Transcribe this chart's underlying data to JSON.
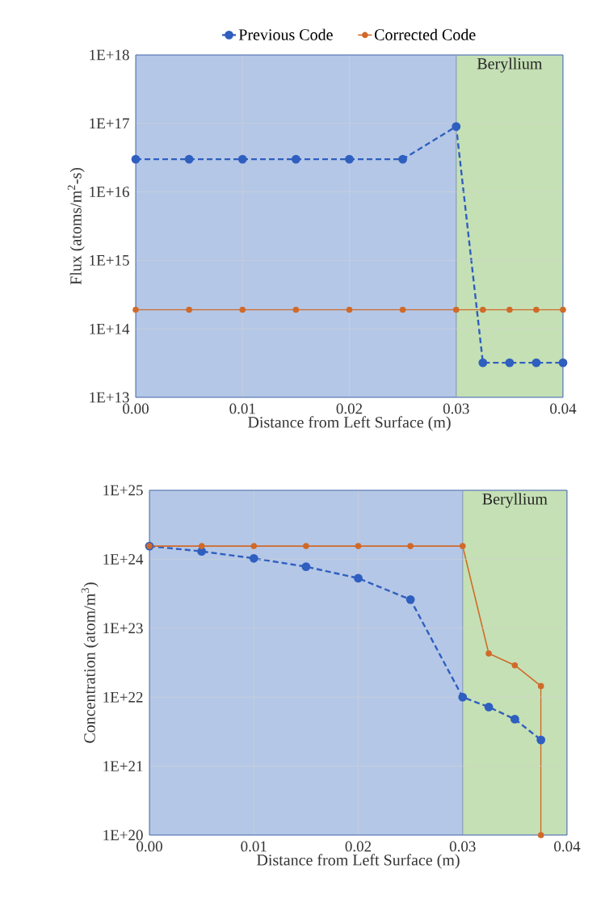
{
  "chart_data": [
    {
      "type": "line",
      "xlabel": "Distance from Left Surface (m)",
      "ylabel": "Flux (atoms/m$^{2}$-s)",
      "log": "y",
      "grid": true,
      "legend": "top",
      "marker": "circle",
      "x": [
        0,
        0.005,
        0.01,
        0.015,
        0.02,
        0.025,
        0.03,
        0.0325,
        0.035,
        0.0375,
        0.04
      ],
      "xlim": [
        0,
        0.04
      ],
      "xticks": [
        {
          "value": 0,
          "label": "0.00"
        },
        {
          "value": 0.01,
          "label": "0.01"
        },
        {
          "value": 0.02,
          "label": "0.02"
        },
        {
          "value": 0.03,
          "label": "0.03"
        },
        {
          "value": 0.04,
          "label": "0.04"
        }
      ],
      "ylim": [
        10000000000000.0,
        1e+18
      ],
      "yticks": [
        {
          "value": 10000000000000.0,
          "label": "1E+13"
        },
        {
          "value": 100000000000000.0,
          "label": "1E+14"
        },
        {
          "value": 1000000000000000.0,
          "label": "1E+15"
        },
        {
          "value": 1e+16,
          "label": "1E+16"
        },
        {
          "value": 1e+17,
          "label": "1E+17"
        },
        {
          "value": 1e+18,
          "label": "1E+18"
        }
      ],
      "bands": [
        {
          "axis": "x",
          "from": 0,
          "to": 0.03,
          "color": "#b4c7e7"
        },
        {
          "axis": "x",
          "from": 0.03,
          "to": 0.04,
          "label": "Beryllium",
          "color": "#c5e0b4"
        }
      ],
      "series": [
        {
          "name": "Previous Code",
          "color": "#2f5fbf",
          "line_style": "dashed",
          "values": [
            3e+16,
            3e+16,
            3e+16,
            3e+16,
            3e+16,
            3e+16,
            9e+16,
            32000000000000.0,
            32000000000000.0,
            32000000000000.0,
            32000000000000.0
          ]
        },
        {
          "name": "Corrected Code",
          "color": "#d06a2a",
          "line_style": "solid",
          "values": [
            190000000000000.0,
            190000000000000.0,
            190000000000000.0,
            190000000000000.0,
            190000000000000.0,
            190000000000000.0,
            190000000000000.0,
            190000000000000.0,
            190000000000000.0,
            190000000000000.0,
            190000000000000.0
          ]
        }
      ]
    },
    {
      "type": "line",
      "xlabel": "Distance from Left Surface (m)",
      "ylabel": "Concentration (atom/m$^{3}$)",
      "log": "y",
      "grid": true,
      "marker": "circle",
      "x": [
        0,
        0.005,
        0.01,
        0.015,
        0.02,
        0.025,
        0.03,
        0.0325,
        0.035,
        0.0375,
        0.0375
      ],
      "xlim": [
        0,
        0.04
      ],
      "xticks": [
        {
          "value": 0,
          "label": "0.00"
        },
        {
          "value": 0.01,
          "label": "0.01"
        },
        {
          "value": 0.02,
          "label": "0.02"
        },
        {
          "value": 0.03,
          "label": "0.03"
        },
        {
          "value": 0.04,
          "label": "0.04"
        }
      ],
      "ylim": [
        1e+20,
        1e+25
      ],
      "yticks": [
        {
          "value": 1e+20,
          "label": "1E+20"
        },
        {
          "value": 1e+21,
          "label": "1E+21"
        },
        {
          "value": 1e+22,
          "label": "1E+22"
        },
        {
          "value": 1e+23,
          "label": "1E+23"
        },
        {
          "value": 1e+24,
          "label": "1E+24"
        },
        {
          "value": 1e+25,
          "label": "1E+25"
        }
      ],
      "bands": [
        {
          "axis": "x",
          "from": 0,
          "to": 0.03,
          "color": "#b4c7e7"
        },
        {
          "axis": "x",
          "from": 0.03,
          "to": 0.04,
          "label": "Beryllium",
          "color": "#c5e0b4"
        }
      ],
      "series": [
        {
          "color": "#2f5fbf",
          "line_style": "dashed",
          "values": [
            1.55e+24,
            1.3e+24,
            1.03e+24,
            7.8e+23,
            5.3e+23,
            2.6e+23,
            1e+22,
            7.2e+21,
            4.8e+21,
            2.4e+21,
            null
          ]
        },
        {
          "color": "#d06a2a",
          "line_style": "solid",
          "values": [
            1.55e+24,
            1.55e+24,
            1.55e+24,
            1.55e+24,
            1.55e+24,
            1.55e+24,
            1.55e+24,
            4.3e+22,
            2.9e+22,
            1.45e+22,
            1e+20
          ]
        }
      ]
    }
  ]
}
